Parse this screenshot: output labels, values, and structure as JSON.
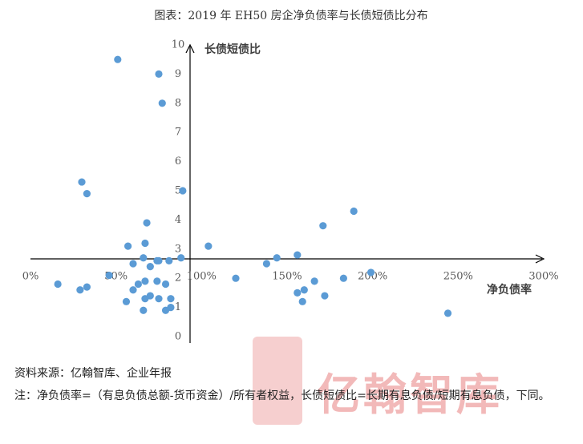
{
  "chart_data": {
    "type": "scatter",
    "title": "图表：2019 年 EH50 房企净负债率与长债短债比分布",
    "x_label": "净负债率",
    "y_label": "长债短债比",
    "color": "#5b9bd5",
    "grid": false,
    "xlim": [
      0,
      300
    ],
    "ylim": [
      0,
      10
    ],
    "xticks": [
      {
        "value": 0,
        "label": "0%"
      },
      {
        "value": 50,
        "label": "50%"
      },
      {
        "value": 100,
        "label": "100%"
      },
      {
        "value": 150,
        "label": "150%"
      },
      {
        "value": 200,
        "label": "200%"
      },
      {
        "value": 250,
        "label": "250%"
      },
      {
        "value": 300,
        "label": "300%"
      }
    ],
    "yticks": [
      0,
      1,
      2,
      3,
      4,
      5,
      6,
      7,
      8,
      9,
      10
    ],
    "x": [
      51,
      75,
      77,
      30,
      33,
      89,
      189,
      68,
      171,
      67,
      57,
      104,
      156,
      144,
      138,
      66,
      74,
      75,
      81,
      88,
      60,
      70,
      46,
      16,
      33,
      29,
      63,
      67,
      74,
      79,
      60,
      120,
      199,
      183,
      166,
      160,
      156,
      172,
      159,
      70,
      67,
      75,
      82,
      56,
      82,
      79,
      66,
      244
    ],
    "values": [
      9.5,
      9.0,
      8.0,
      5.3,
      4.9,
      5.0,
      4.3,
      3.9,
      3.8,
      3.2,
      3.1,
      3.1,
      2.8,
      2.7,
      2.5,
      2.7,
      2.6,
      2.6,
      2.6,
      2.7,
      2.5,
      2.4,
      2.1,
      1.8,
      1.7,
      1.6,
      1.8,
      1.9,
      1.9,
      1.8,
      1.6,
      2.0,
      2.2,
      2.0,
      1.9,
      1.6,
      1.5,
      1.4,
      1.2,
      1.4,
      1.3,
      1.3,
      1.3,
      1.2,
      1.0,
      0.9,
      0.9,
      0.8
    ]
  },
  "source": "资料来源：亿翰智库、企业年报",
  "note": "注：净负债率=（有息负债总额-货币资金）/所有者权益，长债短债比=长期有息负债/短期有息负债，下同。",
  "watermark": "亿翰智库"
}
